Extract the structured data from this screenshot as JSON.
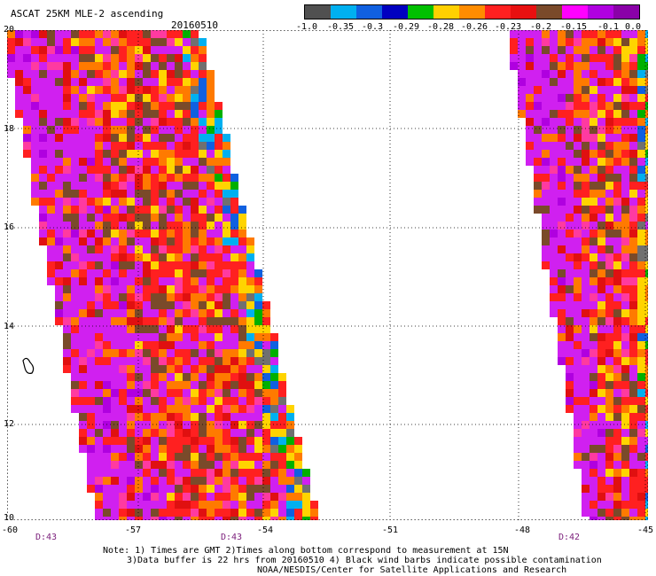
{
  "title": "ASCAT 25KM MLE-2 ascending",
  "date": "20160510",
  "colorbar": {
    "colors": [
      "#505050",
      "#00b0f0",
      "#1060e0",
      "#0000c0",
      "#00c000",
      "#ffd000",
      "#ff8c00",
      "#ff2020",
      "#e81010",
      "#7a4a2a",
      "#ff00ff",
      "#b000e0",
      "#8a00a8"
    ],
    "labels": [
      "-1.0",
      "-0.35",
      "-0.3",
      "-0.29",
      "-0.28",
      "-0.26",
      "-0.23",
      "-0.2",
      "-0.15",
      "-0.1",
      "0.0"
    ]
  },
  "map": {
    "lat_labels": [
      "20",
      "18",
      "16",
      "14",
      "12",
      "10"
    ],
    "lon_labels": [
      "-60",
      "-57",
      "-54",
      "-51",
      "-48",
      "-45"
    ],
    "time_labels": [
      "D:43",
      "D:43",
      "D:42"
    ],
    "grid": "dotted"
  },
  "notes": {
    "line1": "Note: 1) Times are GMT 2)Times along bottom correspond to measurement at 15N",
    "line2": "3)Data buffer is 22 hrs from 20160510 4) Black wind barbs indicate possible contamination",
    "line3": "NOAA/NESDIS/Center for Satellite Applications and Research"
  }
}
